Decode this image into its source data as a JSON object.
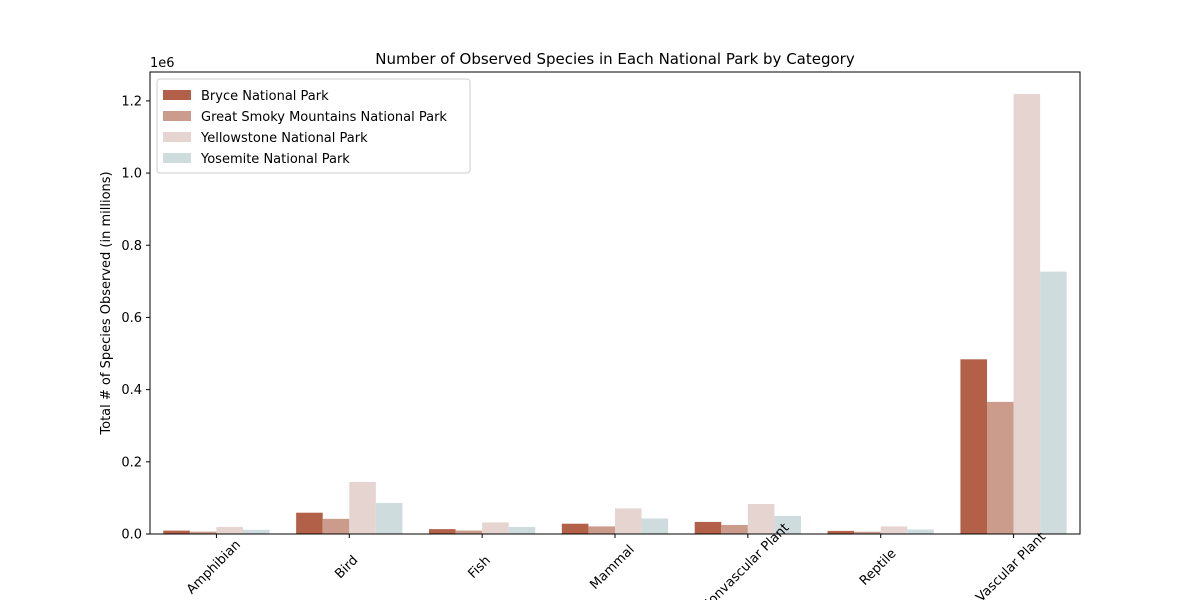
{
  "chart_data": {
    "type": "bar",
    "title": "Number of Observed Species in Each National Park by Category",
    "xlabel": "",
    "ylabel": "Total # of Species Observed (in millions)",
    "y_offset_label": "1e6",
    "ylim": [
      0,
      1.28
    ],
    "yticks": [
      "0.0",
      "0.2",
      "0.4",
      "0.6",
      "0.8",
      "1.0",
      "1.2"
    ],
    "legend_position": "top-left",
    "categories": [
      "Amphibian",
      "Bird",
      "Fish",
      "Mammal",
      "Nonvascular Plant",
      "Reptile",
      "Vascular Plant"
    ],
    "series": [
      {
        "name": "Bryce National Park",
        "color": "#b36049",
        "values": [
          0.0094,
          0.059,
          0.0135,
          0.0285,
          0.0335,
          0.0086,
          0.484
        ]
      },
      {
        "name": "Great Smoky Mountains National Park",
        "color": "#cb9b8b",
        "values": [
          0.0065,
          0.042,
          0.0095,
          0.021,
          0.025,
          0.0062,
          0.366
        ]
      },
      {
        "name": "Yellowstone National Park",
        "color": "#e5d4d0",
        "values": [
          0.0195,
          0.144,
          0.032,
          0.071,
          0.083,
          0.021,
          1.219
        ]
      },
      {
        "name": "Yosemite National Park",
        "color": "#cfdcde",
        "values": [
          0.0115,
          0.086,
          0.0195,
          0.043,
          0.05,
          0.0125,
          0.727
        ]
      }
    ]
  }
}
